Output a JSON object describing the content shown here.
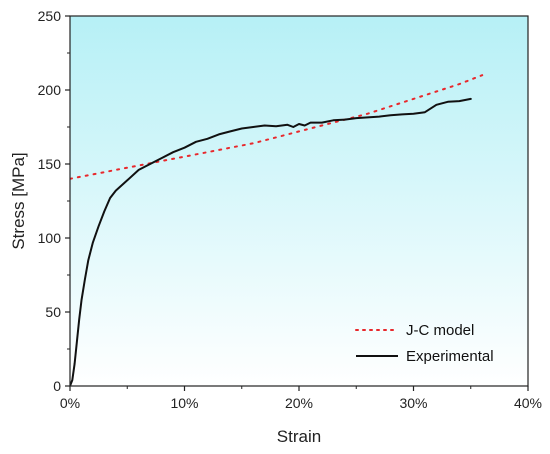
{
  "chart_data": {
    "type": "line",
    "xlabel": "Strain",
    "ylabel": "Stress [MPa]",
    "xlim": [
      0,
      40
    ],
    "ylim": [
      0,
      250
    ],
    "x_ticks": [
      "0%",
      "10%",
      "20%",
      "30%",
      "40%"
    ],
    "y_ticks": [
      "0",
      "50",
      "100",
      "150",
      "200",
      "250"
    ],
    "x_tick_values": [
      0,
      10,
      20,
      30,
      40
    ],
    "y_tick_values": [
      0,
      50,
      100,
      150,
      200,
      250
    ],
    "x_unit": "%",
    "background_gradient": [
      "#b6f0f6",
      "#ffffff"
    ],
    "legend_position": "bottom-right",
    "series": [
      {
        "name": "J-C model",
        "style": "dotted",
        "color": "#e8282c",
        "x": [
          0,
          2,
          4,
          6,
          8,
          10,
          12,
          14,
          16,
          18,
          20,
          22,
          24,
          26,
          28,
          30,
          32,
          34,
          36
        ],
        "y": [
          140,
          143,
          146,
          149,
          152,
          155,
          158,
          161,
          164,
          168,
          172,
          176,
          180,
          184,
          189,
          194,
          199,
          204,
          210
        ]
      },
      {
        "name": "Experimental",
        "style": "solid",
        "color": "#111111",
        "x": [
          0,
          0.2,
          0.4,
          0.6,
          0.8,
          1.0,
          1.3,
          1.6,
          2.0,
          2.5,
          3.0,
          3.5,
          4.0,
          5.0,
          6.0,
          7.0,
          8.0,
          9.0,
          10.0,
          11.0,
          12.0,
          13.0,
          14.0,
          15.0,
          16.0,
          17.0,
          18.0,
          19.0,
          19.5,
          20.0,
          20.5,
          21.0,
          22.0,
          23.0,
          24.0,
          25.0,
          26.0,
          27.0,
          28.0,
          29.0,
          30.0,
          31.0,
          32.0,
          33.0,
          34.0,
          35.0
        ],
        "y": [
          0,
          4,
          15,
          30,
          45,
          58,
          72,
          85,
          97,
          108,
          118,
          127,
          132,
          139,
          146,
          150,
          154,
          158,
          161,
          165,
          167,
          170,
          172,
          174,
          175,
          176,
          175.5,
          176.5,
          175,
          177,
          176,
          178,
          178,
          179.5,
          180,
          181,
          181.5,
          182,
          183,
          183.5,
          184,
          185,
          190,
          192,
          192.5,
          194
        ]
      }
    ]
  }
}
